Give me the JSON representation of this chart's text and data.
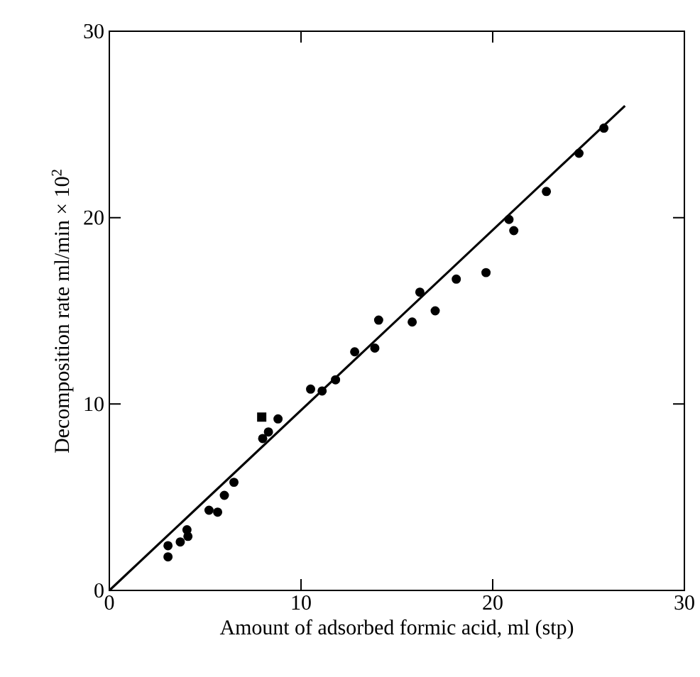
{
  "chart_data": {
    "type": "scatter",
    "xlabel": "Amount of adsorbed formic acid, ml (stp)",
    "ylabel": "Decomposition rate ml/min × 10$^{2}$",
    "xlim": [
      0,
      30
    ],
    "ylim": [
      0,
      30
    ],
    "xticks": [
      0,
      10,
      20,
      30
    ],
    "yticks": [
      0,
      10,
      20,
      30
    ],
    "grid": false,
    "series": [
      {
        "marker": "circle",
        "color": "#000000",
        "x": [
          3.06,
          3.06,
          3.7,
          4.1,
          4.05,
          5.2,
          5.65,
          6.0,
          6.5,
          8.0,
          8.3
        ],
        "values": [
          1.8,
          2.4,
          2.6,
          2.9,
          3.25,
          4.3,
          4.2,
          5.1,
          5.8,
          8.15,
          8.5
        ]
      },
      {
        "marker": "square",
        "color": "#000000",
        "x": [
          7.95
        ],
        "values": [
          9.3
        ]
      },
      {
        "marker": "circle",
        "color": "#000000",
        "x": [
          8.8,
          10.5,
          11.1,
          11.8,
          12.8,
          13.85,
          14.05,
          15.8,
          16.2,
          17.0,
          18.1,
          19.65,
          20.85,
          21.1,
          22.8,
          24.5,
          25.8
        ],
        "values": [
          9.2,
          10.8,
          10.7,
          11.3,
          12.8,
          13.0,
          14.5,
          14.4,
          16.0,
          15.0,
          16.7,
          17.05,
          19.9,
          19.3,
          21.4,
          23.45,
          24.8
        ]
      },
      {
        "type": "line",
        "marker": "none",
        "line_style": "solid",
        "color": "#000000",
        "x": [
          0,
          26.9
        ],
        "values": [
          0,
          26.0
        ]
      }
    ]
  }
}
